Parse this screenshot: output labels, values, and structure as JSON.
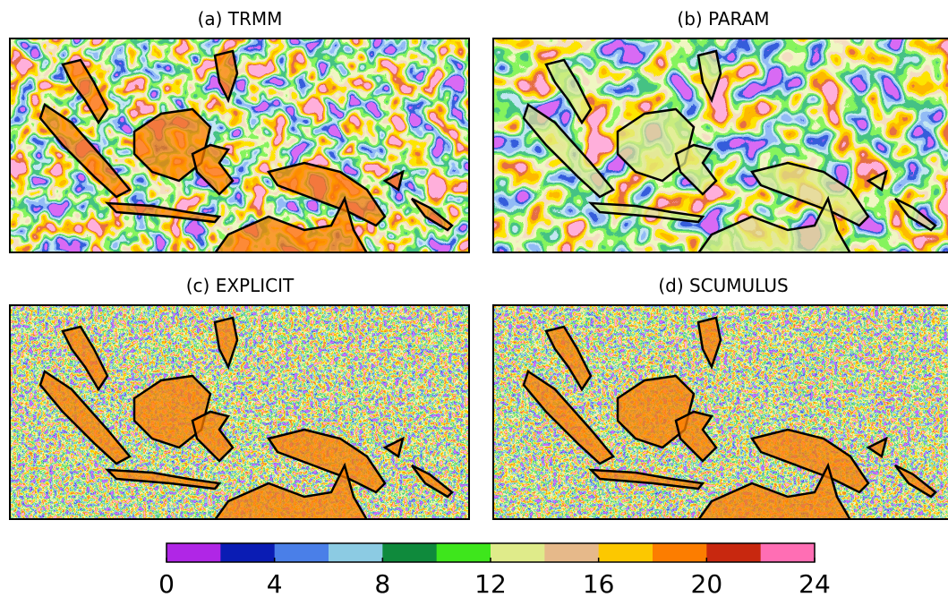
{
  "panels": [
    {
      "title": "(a) TRMM",
      "noise": 0.045
    },
    {
      "title": "(b) PARAM",
      "noise": 0.03
    },
    {
      "title": "(c) EXPLICIT",
      "noise": 0.22
    },
    {
      "title": "(d) SCUMULUS",
      "noise": 0.22
    }
  ],
  "colorbar": {
    "colors": [
      "#b026e6",
      "#0a1cb4",
      "#4a7fe8",
      "#8ccbe3",
      "#0f8a3c",
      "#3ee61c",
      "#dfeb8a",
      "#e6b98a",
      "#fcc800",
      "#fc7d00",
      "#c8280f",
      "#ff6eb4"
    ],
    "lim": [
      0,
      24
    ],
    "ticks": [
      0,
      4,
      8,
      12,
      16,
      20,
      24
    ]
  }
}
